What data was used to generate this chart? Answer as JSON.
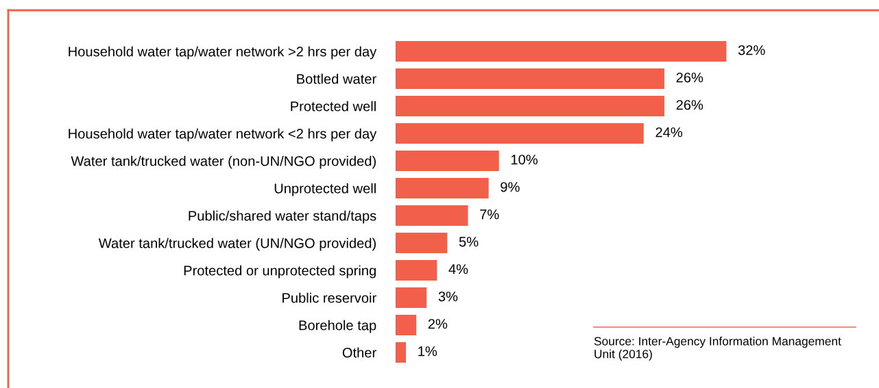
{
  "chart_data": {
    "type": "bar",
    "orientation": "horizontal",
    "categories": [
      "Household water tap/water network >2 hrs per day",
      "Bottled water",
      "Protected well",
      "Household water tap/water network <2 hrs per day",
      "Water tank/trucked water (non-UN/NGO provided)",
      "Unprotected well",
      "Public/shared water stand/taps",
      "Water tank/trucked water (UN/NGO provided)",
      "Protected or unprotected spring",
      "Public reservoir",
      "Borehole tap",
      "Other"
    ],
    "values": [
      32,
      26,
      26,
      24,
      10,
      9,
      7,
      5,
      4,
      3,
      2,
      1
    ],
    "color": "#f2604b",
    "value_labels": [
      "32%",
      "26%",
      "26%",
      "24%",
      "10%",
      "9%",
      "7%",
      "5%",
      "4%",
      "3%",
      "2%",
      "1%"
    ],
    "annotations": [
      "Source: Inter-Agency Information Management Unit (2016)"
    ],
    "grid": false,
    "legend": false,
    "tick_labels": "y"
  }
}
